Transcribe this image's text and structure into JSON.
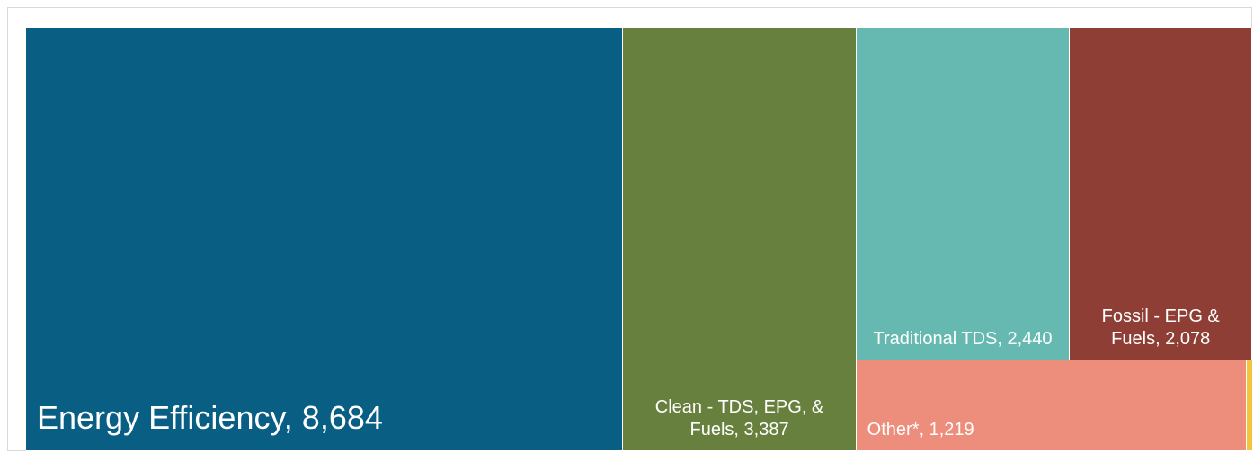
{
  "chart_data": {
    "type": "treemap",
    "title": "",
    "items": [
      {
        "label": "Energy Efficiency",
        "value": 8684,
        "display": "Energy Efficiency, 8,684",
        "color": "#095E84"
      },
      {
        "label": "Clean - TDS, EPG, & Fuels",
        "value": 3387,
        "display": "Clean - TDS, EPG, & Fuels, 3,387",
        "color": "#68803D"
      },
      {
        "label": "Traditional TDS",
        "value": 2440,
        "display": "Traditional TDS, 2,440",
        "color": "#65B9B0"
      },
      {
        "label": "Fossil - EPG & Fuels",
        "value": 2078,
        "display": "Fossil - EPG & Fuels, 2,078",
        "color": "#8E3E34"
      },
      {
        "label": "Other*",
        "value": 1219,
        "display": "Other*, 1,219",
        "color": "#EC8E7B"
      },
      {
        "label": "",
        "value": 18,
        "display": "",
        "color": "#F2C53D"
      }
    ]
  }
}
